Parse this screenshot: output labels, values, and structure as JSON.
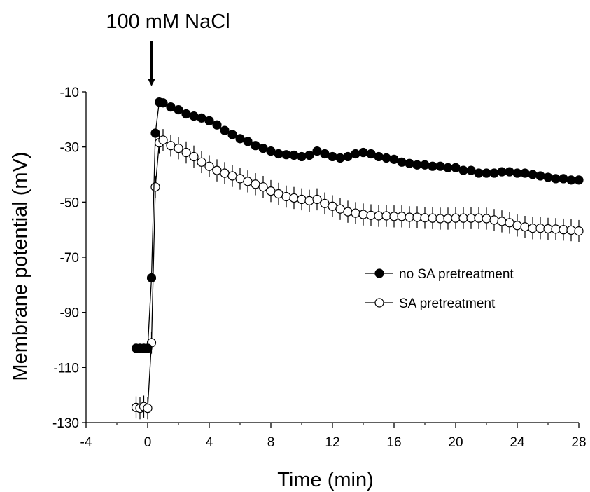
{
  "chart_data": {
    "type": "line",
    "title": "",
    "xlabel": "Time (min)",
    "ylabel": "Membrane potential (mV)",
    "xlim": [
      -4,
      28
    ],
    "ylim": [
      -130,
      -10
    ],
    "xticks": [
      -4,
      0,
      4,
      8,
      12,
      16,
      20,
      24,
      28
    ],
    "yticks": [
      -10,
      -30,
      -50,
      -70,
      -90,
      -110,
      -130
    ],
    "xtick_labels": [
      "-4",
      "0",
      "4",
      "8",
      "12",
      "16",
      "20",
      "24",
      "28"
    ],
    "ytick_labels": [
      "-10",
      "-30",
      "-50",
      "-70",
      "-90",
      "-110",
      "-130"
    ],
    "grid": false,
    "legend_position": "right",
    "annotation": {
      "text": "100 mM NaCl",
      "x": 0.25
    },
    "series": [
      {
        "name": "no SA pretreatment",
        "marker": "filled-circle",
        "color": "#000000",
        "error_bar": 1.5,
        "x": [
          -0.75,
          -0.5,
          -0.25,
          0,
          0.25,
          0.5,
          0.75,
          1,
          1.5,
          2,
          2.5,
          3,
          3.5,
          4,
          4.5,
          5,
          5.5,
          6,
          6.5,
          7,
          7.5,
          8,
          8.5,
          9,
          9.5,
          10,
          10.5,
          11,
          11.5,
          12,
          12.5,
          13,
          13.5,
          14,
          14.5,
          15,
          15.5,
          16,
          16.5,
          17,
          17.5,
          18,
          18.5,
          19,
          19.5,
          20,
          20.5,
          21,
          21.5,
          22,
          22.5,
          23,
          23.5,
          24,
          24.5,
          25,
          25.5,
          26,
          26.5,
          27,
          27.5,
          28
        ],
        "y": [
          -103,
          -103,
          -103,
          -103,
          -77.5,
          -25,
          -13.7,
          -14,
          -15.5,
          -16.5,
          -18,
          -18.8,
          -19.5,
          -20.5,
          -22,
          -24,
          -25.5,
          -27,
          -28,
          -29.5,
          -30.5,
          -31.5,
          -32.5,
          -32.8,
          -33,
          -33.5,
          -33,
          -31.5,
          -32.5,
          -33.5,
          -34,
          -33.5,
          -32.5,
          -32,
          -32.5,
          -33.5,
          -34,
          -34.5,
          -35.5,
          -36,
          -36.5,
          -36.5,
          -37,
          -37,
          -37.5,
          -37.5,
          -38.5,
          -38.5,
          -39.5,
          -39.5,
          -39.5,
          -39,
          -39,
          -39.5,
          -39.5,
          -40,
          -40.5,
          -41,
          -41.5,
          -41.5,
          -42,
          -42
        ]
      },
      {
        "name": "SA pretreatment",
        "marker": "open-circle",
        "color": "#000000",
        "error_bar": 4,
        "x": [
          -0.75,
          -0.5,
          -0.25,
          0,
          0.25,
          0.5,
          0.75,
          1,
          1.5,
          2,
          2.5,
          3,
          3.5,
          4,
          4.5,
          5,
          5.5,
          6,
          6.5,
          7,
          7.5,
          8,
          8.5,
          9,
          9.5,
          10,
          10.5,
          11,
          11.5,
          12,
          12.5,
          13,
          13.5,
          14,
          14.5,
          15,
          15.5,
          16,
          16.5,
          17,
          17.5,
          18,
          18.5,
          19,
          19.5,
          20,
          20.5,
          21,
          21.5,
          22,
          22.5,
          23,
          23.5,
          24,
          24.5,
          25,
          25.5,
          26,
          26.5,
          27,
          27.5,
          28
        ],
        "y": [
          -124.5,
          -124.8,
          -124.2,
          -124.8,
          -101,
          -44.5,
          -28.5,
          -27.5,
          -29.5,
          -30.5,
          -32,
          -33.5,
          -35.5,
          -37,
          -38.5,
          -39.5,
          -40.5,
          -41.5,
          -42.5,
          -43.5,
          -44.5,
          -46,
          -47,
          -48,
          -48.5,
          -49,
          -49.5,
          -49,
          -50.5,
          -51.5,
          -52.5,
          -53.5,
          -54,
          -54.5,
          -54.8,
          -55,
          -55,
          -55.2,
          -55.2,
          -55.5,
          -55.5,
          -55.7,
          -55.8,
          -56,
          -56,
          -55.8,
          -55.8,
          -55.8,
          -55.8,
          -56,
          -56.5,
          -57,
          -57.5,
          -58.5,
          -59,
          -59.5,
          -59.5,
          -59.7,
          -59.8,
          -60,
          -60.2,
          -60.5
        ]
      }
    ]
  }
}
